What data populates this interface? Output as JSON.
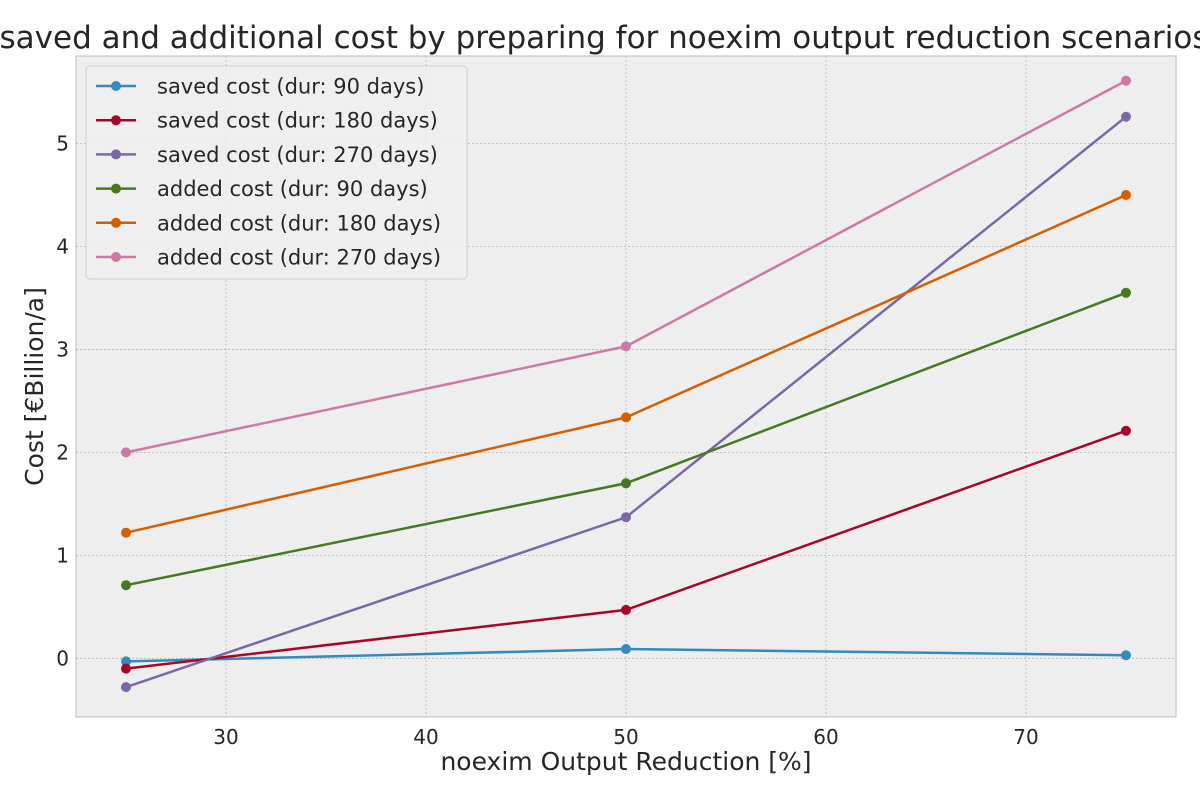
{
  "chart_data": {
    "type": "line",
    "title": "saved and additional cost by preparing for noexim output reduction scenarios",
    "xlabel": "noexim Output Reduction [%]",
    "ylabel": "Cost [€Billion/a]",
    "x": [
      25,
      50,
      75
    ],
    "xlim": [
      22.5,
      77.5
    ],
    "ylim": [
      -0.57,
      5.85
    ],
    "xticks": [
      30,
      40,
      50,
      60,
      70
    ],
    "yticks": [
      0,
      1,
      2,
      3,
      4,
      5
    ],
    "grid": true,
    "legend_position": "top-left",
    "series": [
      {
        "name": "saved cost (dur: 90 days)",
        "color": "#348ABD",
        "values": [
          -0.03,
          0.09,
          0.03
        ]
      },
      {
        "name": "saved cost (dur: 180 days)",
        "color": "#A60628",
        "values": [
          -0.1,
          0.47,
          2.21
        ]
      },
      {
        "name": "saved cost (dur: 270 days)",
        "color": "#7A68A6",
        "values": [
          -0.28,
          1.37,
          5.26
        ]
      },
      {
        "name": "added cost (dur: 90 days)",
        "color": "#467821",
        "values": [
          0.71,
          1.7,
          3.55
        ]
      },
      {
        "name": "added cost (dur: 180 days)",
        "color": "#D55E00",
        "values": [
          1.22,
          2.34,
          4.5
        ]
      },
      {
        "name": "added cost (dur: 270 days)",
        "color": "#CC79A7",
        "values": [
          2.0,
          3.03,
          5.61
        ]
      }
    ]
  }
}
